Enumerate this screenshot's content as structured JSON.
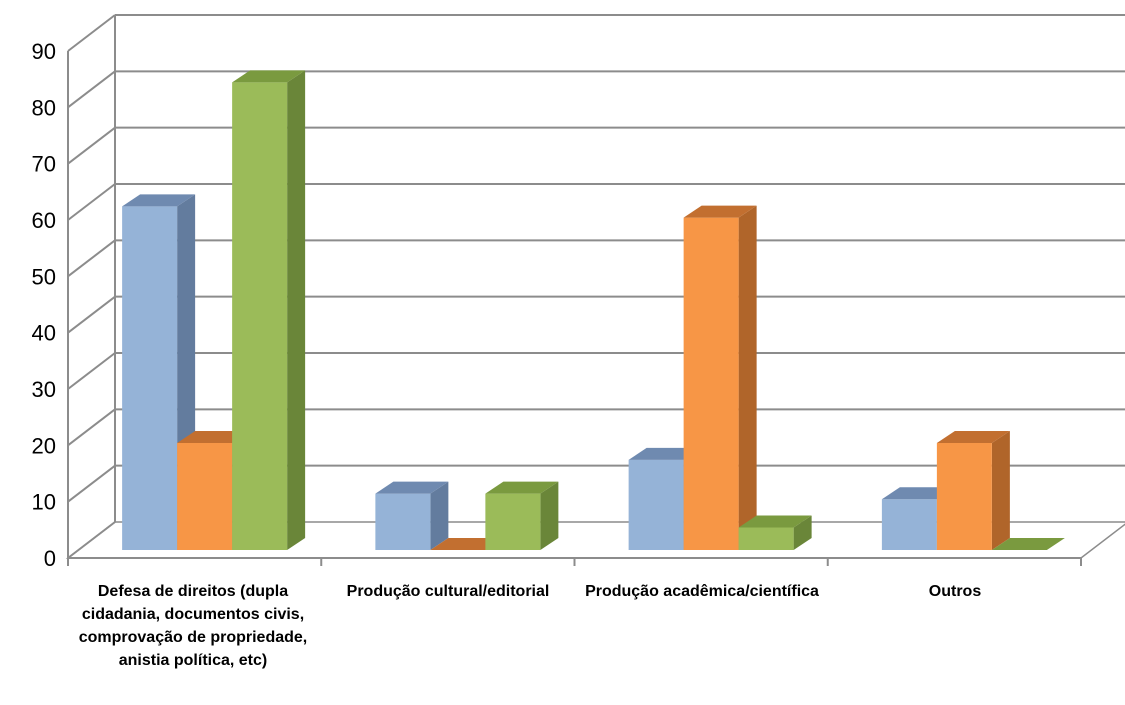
{
  "chart_data": {
    "type": "bar",
    "categories": [
      "Defesa de direitos (dupla cidadania, documentos civis, comprovação de propriedade, anistia política, etc)",
      "Produção cultural/editorial",
      "Produção acadêmica/científica",
      "Outros"
    ],
    "series": [
      {
        "values": [
          61,
          10,
          16,
          9
        ]
      },
      {
        "values": [
          19,
          0,
          59,
          19
        ]
      },
      {
        "values": [
          83,
          10,
          4,
          0
        ]
      }
    ],
    "ylim": [
      0,
      90
    ],
    "yticks": [
      0,
      10,
      20,
      30,
      40,
      50,
      60,
      70,
      80,
      90
    ],
    "grid": true,
    "style": "3d-clustered-column"
  },
  "colors": {
    "series": [
      {
        "front": "#95b3d7",
        "side": "#637c9e",
        "top": "#6f8ab0"
      },
      {
        "front": "#f79646",
        "side": "#b0652a",
        "top": "#c26f30"
      },
      {
        "front": "#9bbb59",
        "side": "#6a8639",
        "top": "#7a9a3f"
      }
    ],
    "grid": "#8c8c8c",
    "floor": "#d9d9d9"
  }
}
